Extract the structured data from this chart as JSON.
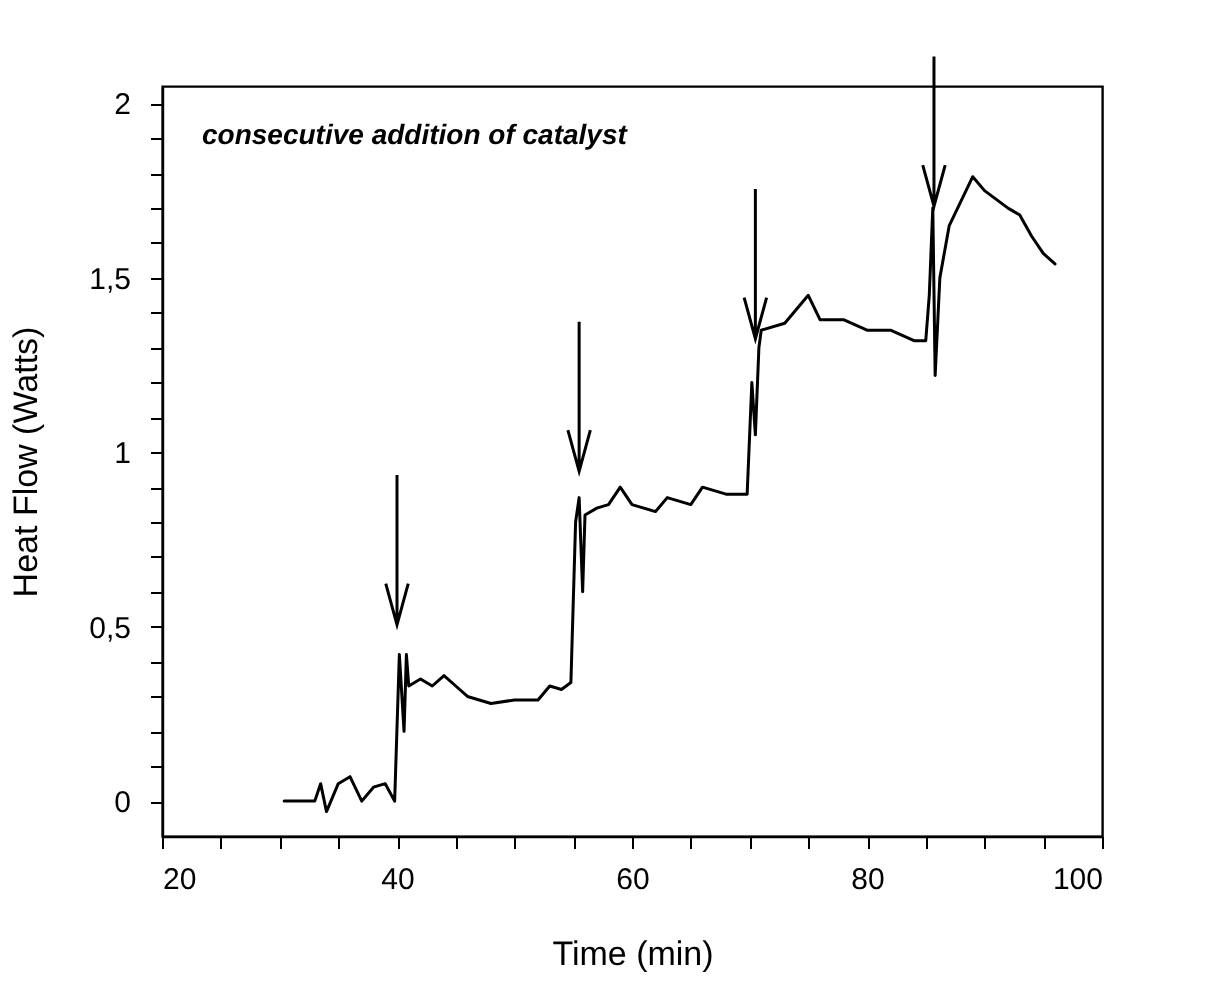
{
  "chart_data": {
    "type": "line",
    "xlabel": "Time (min)",
    "ylabel": "Heat Flow (Watts)",
    "annotations": [
      "consecutive addition of catalyst"
    ],
    "xlim": [
      20,
      100
    ],
    "ylim": [
      -0.1,
      2.05
    ],
    "xticks": [
      20,
      {
        "value": 25,
        "label": null
      },
      {
        "value": 30,
        "label": null
      },
      {
        "value": 35,
        "label": null
      },
      40,
      {
        "value": 45,
        "label": null
      },
      {
        "value": 50,
        "label": null
      },
      {
        "value": 55,
        "label": null
      },
      60,
      {
        "value": 65,
        "label": null
      },
      {
        "value": 70,
        "label": null
      },
      {
        "value": 75,
        "label": null
      },
      80,
      {
        "value": 85,
        "label": null
      },
      {
        "value": 90,
        "label": null
      },
      {
        "value": 95,
        "label": null
      },
      100
    ],
    "yticks": [
      0,
      {
        "value": 0.1,
        "label": null
      },
      {
        "value": 0.2,
        "label": null
      },
      {
        "value": 0.3,
        "label": null
      },
      {
        "value": 0.4,
        "label": null
      },
      {
        "value": 0.5,
        "label": "0,5"
      },
      {
        "value": 0.6,
        "label": null
      },
      {
        "value": 0.7,
        "label": null
      },
      {
        "value": 0.8,
        "label": null
      },
      {
        "value": 0.9,
        "label": null
      },
      1,
      {
        "value": 1.1,
        "label": null
      },
      {
        "value": 1.2,
        "label": null
      },
      {
        "value": 1.3,
        "label": null
      },
      {
        "value": 1.4,
        "label": null
      },
      {
        "value": 1.5,
        "label": "1,5"
      },
      {
        "value": 1.6,
        "label": null
      },
      {
        "value": 1.7,
        "label": null
      },
      {
        "value": 1.8,
        "label": null
      },
      {
        "value": 1.9,
        "label": null
      },
      2
    ],
    "grid": false,
    "marker": "none",
    "line_style": "solid",
    "series": [
      {
        "color": "#000000",
        "x": [
          30.4,
          33,
          33.5,
          34,
          35,
          36,
          37,
          38,
          39,
          39.8,
          40.2,
          40.6,
          40.8,
          41,
          42,
          43,
          44,
          45,
          46,
          48,
          50,
          52,
          53,
          54,
          54.8,
          55.2,
          55.5,
          55.8,
          56,
          57,
          58,
          59,
          60,
          62,
          63,
          65,
          66,
          68,
          69.8,
          70.2,
          70.5,
          70.8,
          71,
          73,
          75,
          76,
          78,
          80,
          82,
          84,
          85,
          85.3,
          85.6,
          85.8,
          86.2,
          87,
          88,
          89,
          90,
          92,
          93,
          94,
          95,
          96
        ],
        "values": [
          0,
          0,
          0.05,
          -0.03,
          0.05,
          0.07,
          0,
          0.04,
          0.05,
          0,
          0.42,
          0.2,
          0.42,
          0.33,
          0.35,
          0.33,
          0.36,
          0.33,
          0.3,
          0.28,
          0.29,
          0.29,
          0.33,
          0.32,
          0.34,
          0.8,
          0.87,
          0.6,
          0.82,
          0.84,
          0.85,
          0.9,
          0.85,
          0.83,
          0.87,
          0.85,
          0.9,
          0.88,
          0.88,
          1.2,
          1.05,
          1.3,
          1.35,
          1.37,
          1.45,
          1.38,
          1.38,
          1.35,
          1.35,
          1.32,
          1.32,
          1.45,
          1.7,
          1.22,
          1.5,
          1.65,
          1.72,
          1.79,
          1.75,
          1.7,
          1.68,
          1.62,
          1.57,
          1.54
        ]
      }
    ]
  }
}
